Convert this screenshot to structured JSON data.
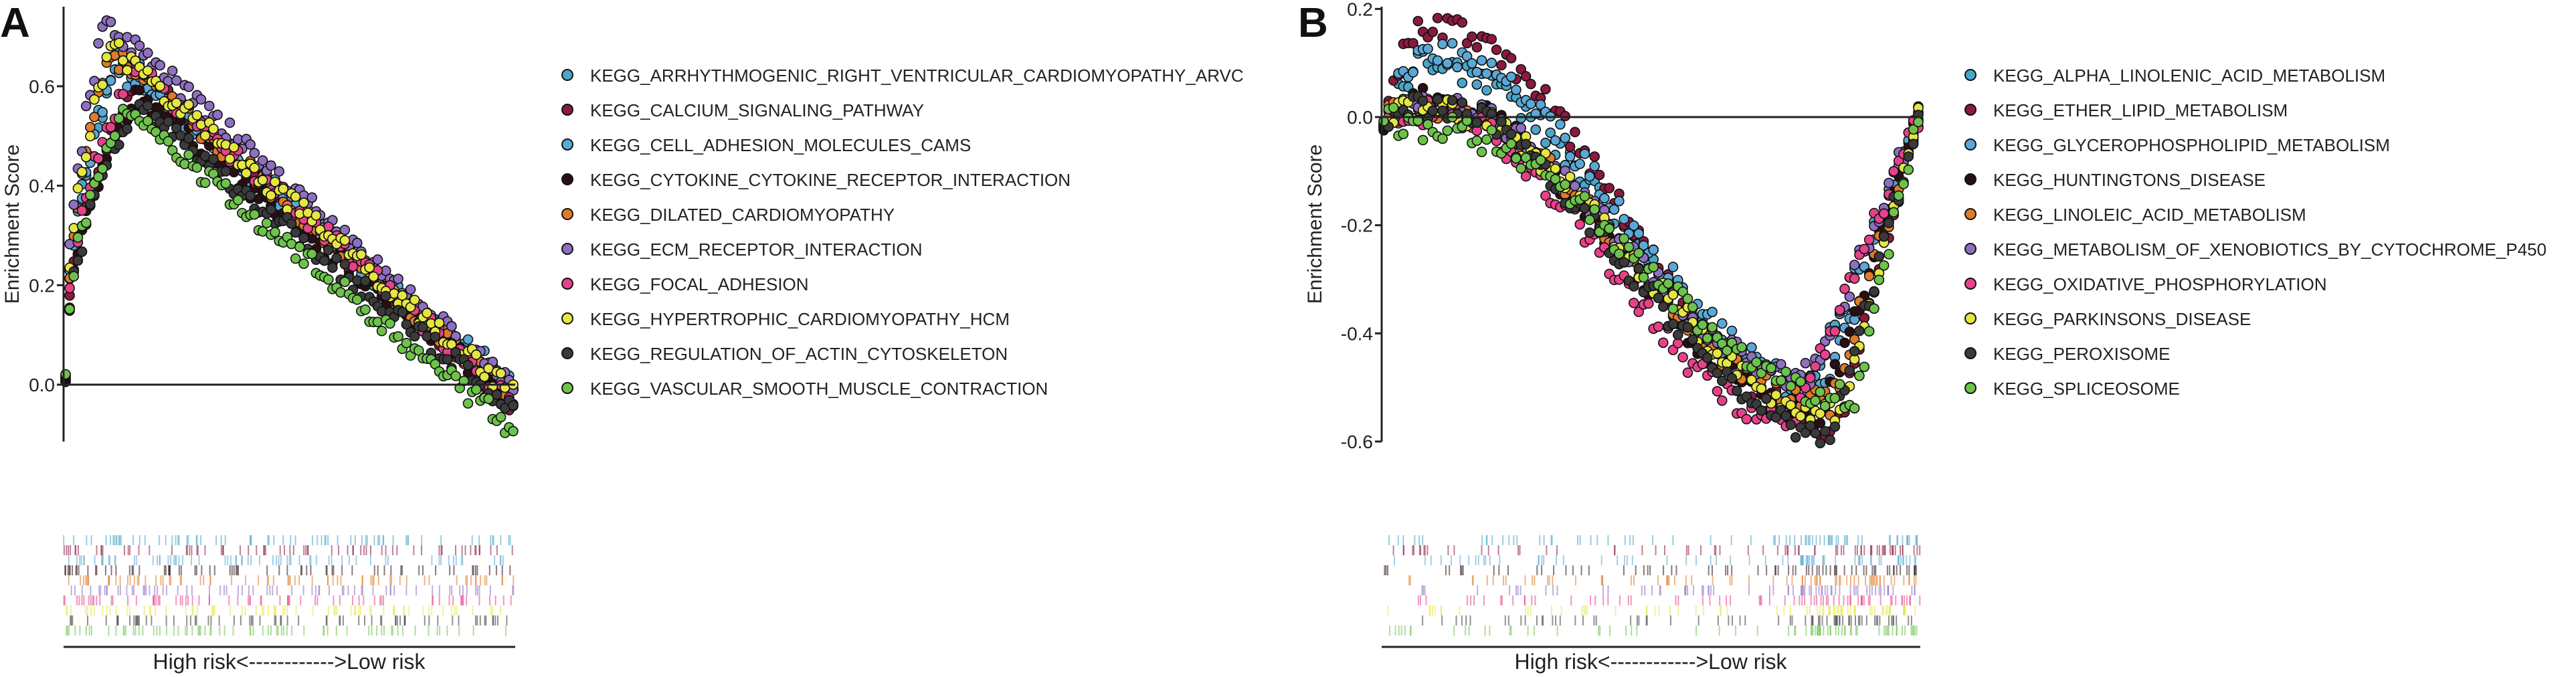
{
  "chart_data": [
    {
      "panel": "A",
      "type": "scatter",
      "ylabel": "Enrichment Score",
      "ylim": [
        -0.1,
        0.76
      ],
      "yticks": [
        "0.0",
        "0.2",
        "0.4",
        "0.6"
      ],
      "ytick_values": [
        0.0,
        0.2,
        0.4,
        0.6
      ],
      "x_axis_text": "High risk<------------>Low risk",
      "series": [
        {
          "name": "KEGG_ARRHYTHMOGENIC_RIGHT_VENTRICULAR_CARDIOMYOPATHY_ARVC",
          "color": "#4BA6C9",
          "peak_x": 0.12,
          "peak": 0.66,
          "end": -0.02
        },
        {
          "name": "KEGG_CALCIUM_SIGNALING_PATHWAY",
          "color": "#8B1A3F",
          "peak_x": 0.17,
          "peak": 0.62,
          "end": -0.04
        },
        {
          "name": "KEGG_CELL_ADHESION_MOLECULES_CAMS",
          "color": "#5BA8D6",
          "peak_x": 0.11,
          "peak": 0.64,
          "end": 0.0
        },
        {
          "name": "KEGG_CYTOKINE_CYTOKINE_RECEPTOR_INTERACTION",
          "color": "#2A0F14",
          "peak_x": 0.16,
          "peak": 0.58,
          "end": -0.03
        },
        {
          "name": "KEGG_DILATED_CARDIOMYOPATHY",
          "color": "#E07B2A",
          "peak_x": 0.1,
          "peak": 0.67,
          "end": -0.02
        },
        {
          "name": "KEGG_ECM_RECEPTOR_INTERACTION",
          "color": "#8E6FC1",
          "peak_x": 0.09,
          "peak": 0.73,
          "end": -0.01
        },
        {
          "name": "KEGG_FOCAL_ADHESION",
          "color": "#E8418A",
          "peak_x": 0.15,
          "peak": 0.64,
          "end": -0.03
        },
        {
          "name": "KEGG_HYPERTROPHIC_CARDIOMYOPATHY_HCM",
          "color": "#E6E642",
          "peak_x": 0.1,
          "peak": 0.68,
          "end": -0.02
        },
        {
          "name": "KEGG_REGULATION_OF_ACTIN_CYTOSKELETON",
          "color": "#3A3A3A",
          "peak_x": 0.16,
          "peak": 0.56,
          "end": -0.05
        },
        {
          "name": "KEGG_VASCULAR_SMOOTH_MUSCLE_CONTRACTION",
          "color": "#6DC34A",
          "peak_x": 0.13,
          "peak": 0.55,
          "end": -0.09
        }
      ]
    },
    {
      "panel": "B",
      "type": "scatter",
      "ylabel": "Enrichment Score",
      "ylim": [
        -0.6,
        0.2
      ],
      "yticks": [
        "0.2",
        "0.0",
        "-0.2",
        "-0.4",
        "-0.6"
      ],
      "ytick_values": [
        0.2,
        0.0,
        -0.2,
        -0.4,
        -0.6
      ],
      "x_axis_text": "High risk<------------>Low risk",
      "series": [
        {
          "name": "KEGG_ALPHA_LINOLENIC_ACID_METABOLISM",
          "color": "#4BA6C9",
          "bump": 0.1,
          "valley_x": 0.8,
          "valley": -0.5
        },
        {
          "name": "KEGG_ETHER_LIPID_METABOLISM",
          "color": "#8B1A3F",
          "bump": 0.17,
          "valley_x": 0.85,
          "valley": -0.57
        },
        {
          "name": "KEGG_GLYCEROPHOSPHOLIPID_METABOLISM",
          "color": "#5BA8D6",
          "bump": 0.12,
          "valley_x": 0.83,
          "valley": -0.5
        },
        {
          "name": "KEGG_HUNTINGTONS_DISEASE",
          "color": "#2A0F14",
          "bump": 0.03,
          "valley_x": 0.82,
          "valley": -0.55
        },
        {
          "name": "KEGG_LINOLEIC_ACID_METABOLISM",
          "color": "#E07B2A",
          "bump": 0.02,
          "valley_x": 0.84,
          "valley": -0.53
        },
        {
          "name": "KEGG_METABOLISM_OF_XENOBIOTICS_BY_CYTOCHROME_P450",
          "color": "#8E6FC1",
          "bump": 0.03,
          "valley_x": 0.8,
          "valley": -0.48
        },
        {
          "name": "KEGG_OXIDATIVE_PHOSPHORYLATION",
          "color": "#E8418A",
          "bump": 0.01,
          "valley_x": 0.77,
          "valley": -0.56
        },
        {
          "name": "KEGG_PARKINSONS_DISEASE",
          "color": "#E6E642",
          "bump": 0.02,
          "valley_x": 0.86,
          "valley": -0.55
        },
        {
          "name": "KEGG_PEROXISOME",
          "color": "#3A3A3A",
          "bump": 0.02,
          "valley_x": 0.84,
          "valley": -0.58
        },
        {
          "name": "KEGG_SPLICEOSOME",
          "color": "#6DC34A",
          "bump": -0.02,
          "valley_x": 0.88,
          "valley": -0.52
        }
      ]
    }
  ]
}
